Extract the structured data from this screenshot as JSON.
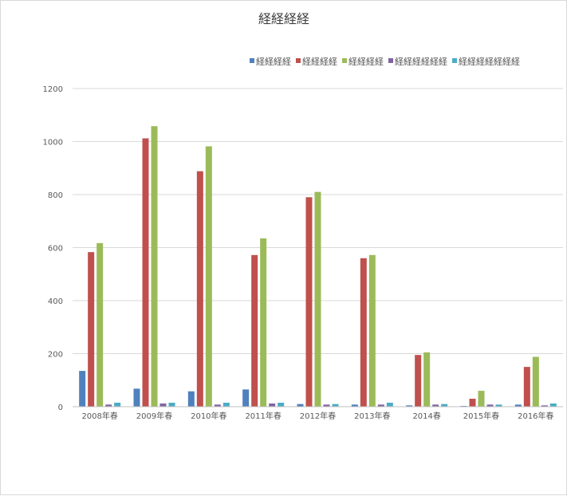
{
  "chart_data": {
    "type": "bar",
    "title": "経経経経",
    "xlabel": "",
    "ylabel": "",
    "categories": [
      "2008年春",
      "2009年春",
      "2010年春",
      "2011年春",
      "2012年春",
      "2013年春",
      "2014春",
      "2015年春",
      "2016年春"
    ],
    "ylim": [
      0,
      1200
    ],
    "yticks": [
      0,
      200,
      400,
      600,
      800,
      1000,
      1200
    ],
    "grid": true,
    "legend_position": "top-right",
    "series": [
      {
        "name": "経経経経",
        "color": "#4f81bd",
        "values": [
          135,
          68,
          58,
          65,
          10,
          8,
          5,
          3,
          8
        ]
      },
      {
        "name": "経経経経",
        "color": "#c0504d",
        "values": [
          583,
          1012,
          888,
          572,
          790,
          560,
          195,
          30,
          150
        ]
      },
      {
        "name": "経経経経",
        "color": "#9bbb59",
        "values": [
          617,
          1058,
          982,
          635,
          810,
          572,
          205,
          60,
          188
        ]
      },
      {
        "name": "経経経経経経",
        "color": "#8064a2",
        "values": [
          8,
          12,
          8,
          12,
          8,
          8,
          8,
          8,
          5
        ]
      },
      {
        "name": "経経経経経経経",
        "color": "#4bacc6",
        "values": [
          15,
          15,
          15,
          15,
          10,
          15,
          10,
          8,
          12
        ]
      }
    ]
  }
}
